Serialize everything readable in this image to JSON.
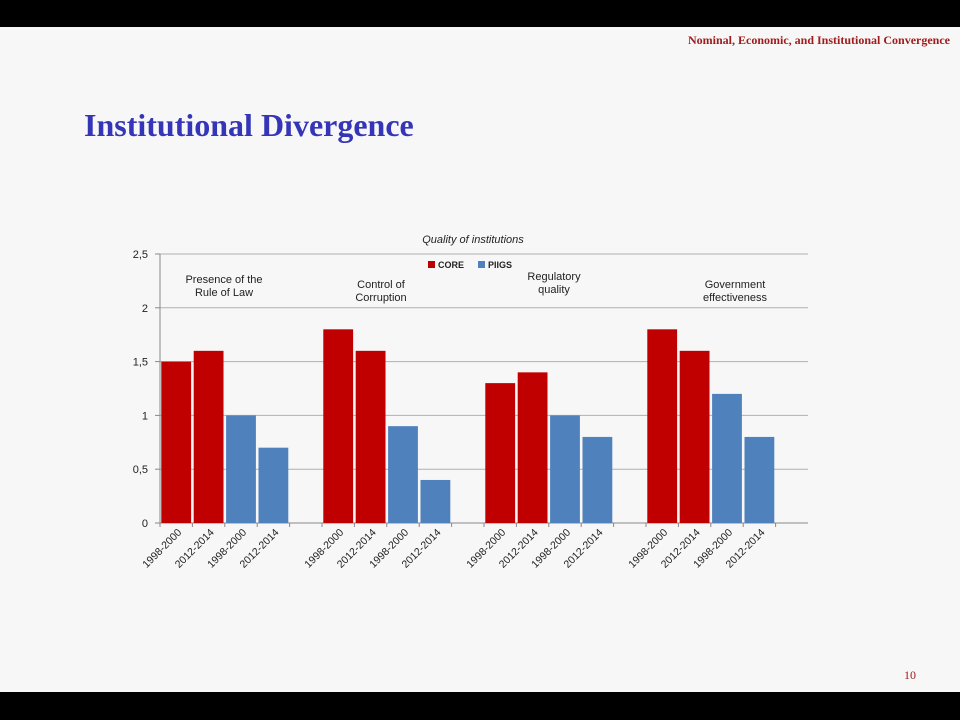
{
  "header": {
    "title": "Nominal, Economic, and Institutional Convergence"
  },
  "slide": {
    "title": "Institutional Divergence",
    "page_number": "10"
  },
  "colors": {
    "core": "#c00000",
    "piigs": "#4f81bd"
  },
  "chart_data": {
    "type": "bar",
    "title": "Quality of institutions",
    "xlabel": "",
    "ylabel": "",
    "ylim": [
      0,
      2.5
    ],
    "yticks": [
      "0",
      "0,5",
      "1",
      "1,5",
      "2",
      "2,5"
    ],
    "legend": {
      "placement": "top",
      "entries": [
        "CORE",
        "PIIGS"
      ]
    },
    "grid": true,
    "groups": [
      {
        "label_lines": [
          "Presence of the",
          "Rule of Law"
        ],
        "bars": [
          {
            "category": "1998-2000",
            "series": "CORE",
            "value": 1.5
          },
          {
            "category": "2012-2014",
            "series": "CORE",
            "value": 1.6
          },
          {
            "category": "1998-2000",
            "series": "PIIGS",
            "value": 1.0
          },
          {
            "category": "2012-2014",
            "series": "PIIGS",
            "value": 0.7
          }
        ]
      },
      {
        "label_lines": [
          "Control of",
          "Corruption"
        ],
        "bars": [
          {
            "category": "1998-2000",
            "series": "CORE",
            "value": 1.8
          },
          {
            "category": "2012-2014",
            "series": "CORE",
            "value": 1.6
          },
          {
            "category": "1998-2000",
            "series": "PIIGS",
            "value": 0.9
          },
          {
            "category": "2012-2014",
            "series": "PIIGS",
            "value": 0.4
          }
        ]
      },
      {
        "label_lines": [
          "Regulatory",
          "quality"
        ],
        "bars": [
          {
            "category": "1998-2000",
            "series": "CORE",
            "value": 1.3
          },
          {
            "category": "2012-2014",
            "series": "CORE",
            "value": 1.4
          },
          {
            "category": "1998-2000",
            "series": "PIIGS",
            "value": 1.0
          },
          {
            "category": "2012-2014",
            "series": "PIIGS",
            "value": 0.8
          }
        ]
      },
      {
        "label_lines": [
          "Government",
          "effectiveness"
        ],
        "bars": [
          {
            "category": "1998-2000",
            "series": "CORE",
            "value": 1.8
          },
          {
            "category": "2012-2014",
            "series": "CORE",
            "value": 1.6
          },
          {
            "category": "1998-2000",
            "series": "PIIGS",
            "value": 1.2
          },
          {
            "category": "2012-2014",
            "series": "PIIGS",
            "value": 0.8
          }
        ]
      }
    ]
  }
}
